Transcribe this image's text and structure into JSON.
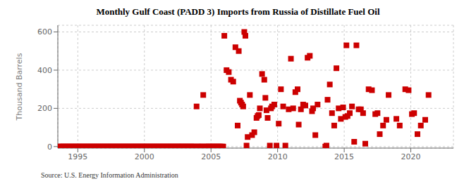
{
  "chart_data": {
    "type": "scatter",
    "title": "Monthly Gulf Coast (PADD 3) Imports from Russia of Distillate Fuel Oil",
    "ylabel": "Thousand Barrels",
    "annotation": "Source: U.S. Energy Information Administration",
    "color": "#cc0000",
    "marker": "square",
    "grid": true,
    "xlim": [
      1993.5,
      2023.2
    ],
    "ylim": [
      -8,
      635
    ],
    "xticks": [
      1995,
      2000,
      2005,
      2010,
      2015,
      2020
    ],
    "yticks": [
      0,
      200,
      400,
      600
    ],
    "x": [
      1993.583,
      1993.667,
      1993.75,
      1993.833,
      1993.917,
      1994.0,
      1994.083,
      1994.167,
      1994.25,
      1994.333,
      1994.417,
      1994.5,
      1994.583,
      1994.667,
      1994.75,
      1994.833,
      1994.917,
      1995.0,
      1995.083,
      1995.167,
      1995.25,
      1995.333,
      1995.417,
      1995.5,
      1995.583,
      1995.667,
      1995.75,
      1995.833,
      1995.917,
      1996.0,
      1996.083,
      1996.167,
      1996.25,
      1996.333,
      1996.417,
      1996.5,
      1996.583,
      1996.667,
      1996.75,
      1996.833,
      1996.917,
      1997.0,
      1997.083,
      1997.167,
      1997.25,
      1997.333,
      1997.417,
      1997.5,
      1997.583,
      1997.667,
      1997.75,
      1997.833,
      1997.917,
      1998.0,
      1998.083,
      1998.167,
      1998.25,
      1998.333,
      1998.417,
      1998.5,
      1998.583,
      1998.667,
      1998.75,
      1998.833,
      1998.917,
      1999.0,
      1999.083,
      1999.167,
      1999.25,
      1999.333,
      1999.417,
      1999.5,
      1999.583,
      1999.667,
      1999.75,
      1999.833,
      1999.917,
      2000.0,
      2000.083,
      2000.167,
      2000.25,
      2000.333,
      2000.417,
      2000.5,
      2000.583,
      2000.667,
      2000.75,
      2000.833,
      2000.917,
      2001.0,
      2001.083,
      2001.167,
      2001.25,
      2001.333,
      2001.417,
      2001.5,
      2001.583,
      2001.667,
      2001.75,
      2001.833,
      2001.917,
      2002.0,
      2002.083,
      2002.167,
      2002.25,
      2002.333,
      2002.417,
      2002.5,
      2002.583,
      2002.667,
      2002.75,
      2002.833,
      2002.917,
      2003.0,
      2003.083,
      2003.167,
      2003.25,
      2003.333,
      2003.417,
      2003.5,
      2003.583,
      2003.667,
      2003.75,
      2003.833,
      2003.917,
      2004.0,
      2004.083,
      2004.167,
      2004.25,
      2004.333,
      2004.417,
      2004.5,
      2004.583,
      2004.667,
      2004.75,
      2004.833,
      2004.917,
      2005.0,
      2005.083,
      2005.167,
      2005.25,
      2005.333,
      2005.417,
      2005.5,
      2005.583,
      2005.667,
      2005.75,
      2005.833,
      2005.917,
      2006.0,
      2006.167,
      2006.333,
      2006.5,
      2006.667,
      2006.833,
      2007.0,
      2007.083,
      2007.167,
      2007.25,
      2007.333,
      2007.417,
      2007.5,
      2007.583,
      2007.667,
      2007.75,
      2007.917,
      2008.083,
      2008.25,
      2008.417,
      2008.5,
      2008.583,
      2008.667,
      2008.833,
      2009.0,
      2009.083,
      2009.167,
      2009.25,
      2009.417,
      2009.5,
      2009.583,
      2009.75,
      2009.917,
      2010.083,
      2010.25,
      2010.417,
      2010.583,
      2010.833,
      2011.0,
      2011.167,
      2011.333,
      2011.5,
      2011.583,
      2011.75,
      2011.917,
      2012.083,
      2012.25,
      2012.417,
      2012.583,
      2012.667,
      2012.833,
      2013.0,
      2013.583,
      2013.667,
      2013.75,
      2013.917,
      2014.083,
      2014.25,
      2014.417,
      2014.583,
      2014.75,
      2014.917,
      2015.083,
      2015.167,
      2015.25,
      2015.417,
      2015.583,
      2015.75,
      2015.917,
      2016.083,
      2016.25,
      2016.417,
      2016.583,
      2016.833,
      2017.083,
      2017.333,
      2017.5,
      2017.667,
      2017.917,
      2018.167,
      2018.333,
      2018.917,
      2019.167,
      2019.583,
      2019.833,
      2020.083,
      2020.25,
      2020.5,
      2020.75,
      2021.083,
      2021.333
    ],
    "values": [
      0,
      0,
      0,
      0,
      0,
      0,
      0,
      0,
      0,
      0,
      0,
      0,
      0,
      0,
      0,
      0,
      0,
      0,
      0,
      0,
      0,
      0,
      0,
      0,
      0,
      0,
      0,
      0,
      0,
      0,
      0,
      0,
      0,
      0,
      0,
      0,
      0,
      0,
      0,
      0,
      0,
      0,
      0,
      0,
      0,
      0,
      0,
      0,
      0,
      0,
      0,
      0,
      0,
      0,
      0,
      0,
      0,
      0,
      0,
      0,
      0,
      0,
      0,
      0,
      0,
      0,
      0,
      0,
      0,
      0,
      0,
      0,
      0,
      0,
      0,
      0,
      0,
      0,
      0,
      0,
      0,
      0,
      0,
      0,
      0,
      0,
      0,
      0,
      0,
      0,
      0,
      0,
      0,
      0,
      0,
      0,
      0,
      0,
      0,
      0,
      0,
      0,
      0,
      0,
      0,
      0,
      0,
      0,
      0,
      0,
      0,
      0,
      0,
      0,
      0,
      0,
      0,
      0,
      0,
      0,
      0,
      0,
      0,
      0,
      210,
      0,
      0,
      0,
      0,
      0,
      270,
      0,
      0,
      0,
      0,
      0,
      0,
      0,
      0,
      0,
      0,
      0,
      0,
      0,
      0,
      0,
      0,
      0,
      0,
      580,
      400,
      390,
      350,
      340,
      520,
      110,
      500,
      240,
      230,
      220,
      210,
      600,
      580,
      5,
      50,
      270,
      60,
      75,
      150,
      160,
      165,
      200,
      380,
      350,
      255,
      190,
      150,
      5,
      200,
      210,
      220,
      5,
      120,
      300,
      210,
      5,
      195,
      460,
      200,
      285,
      300,
      115,
      195,
      220,
      215,
      465,
      475,
      185,
      200,
      60,
      220,
      0,
      5,
      245,
      325,
      175,
      110,
      410,
      200,
      145,
      205,
      155,
      530,
      160,
      175,
      210,
      25,
      530,
      195,
      195,
      175,
      15,
      300,
      295,
      170,
      175,
      65,
      110,
      140,
      270,
      145,
      110,
      300,
      295,
      170,
      175,
      65,
      110,
      140,
      270
    ]
  }
}
